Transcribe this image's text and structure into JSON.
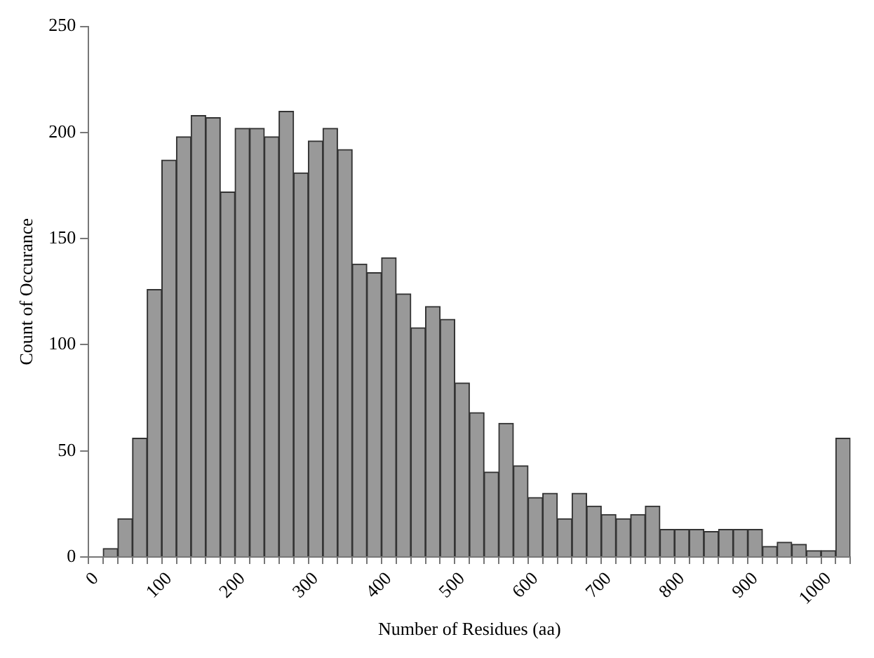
{
  "chart_data": {
    "type": "bar",
    "xlabel": "Number of Residues (aa)",
    "ylabel": "Count of Occurance",
    "categories": [
      "0",
      null,
      null,
      null,
      null,
      "100",
      null,
      null,
      null,
      null,
      "200",
      null,
      null,
      null,
      null,
      "300",
      null,
      null,
      null,
      null,
      "400",
      null,
      null,
      null,
      null,
      "500",
      null,
      null,
      null,
      null,
      "600",
      null,
      null,
      null,
      null,
      "700",
      null,
      null,
      null,
      null,
      "800",
      null,
      null,
      null,
      null,
      "900",
      null,
      null,
      null,
      null,
      "1000",
      null
    ],
    "values": [
      0,
      4,
      18,
      56,
      126,
      187,
      198,
      208,
      207,
      172,
      202,
      202,
      198,
      210,
      181,
      196,
      202,
      192,
      138,
      134,
      141,
      124,
      108,
      118,
      112,
      82,
      68,
      40,
      63,
      43,
      28,
      30,
      18,
      30,
      24,
      20,
      18,
      20,
      24,
      13,
      13,
      13,
      12,
      13,
      13,
      13,
      5,
      7,
      6,
      3,
      3,
      56
    ],
    "color": "#999999",
    "ylim": [
      0,
      250
    ],
    "yticks": [
      0,
      50,
      100,
      150,
      200,
      250
    ],
    "grid": false,
    "legend": false
  }
}
